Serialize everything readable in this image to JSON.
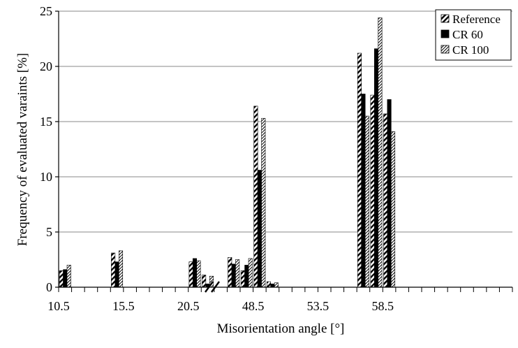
{
  "chart_data": {
    "type": "bar",
    "xlabel": "Misorientation angle [°]",
    "ylabel": "Frequency of evaluated varaints [%]",
    "ylim": [
      0,
      25
    ],
    "yticks": [
      0,
      5,
      10,
      15,
      20,
      25
    ],
    "xtick_labels": [
      "10.5",
      "15.5",
      "20.5",
      "48.5",
      "53.5",
      "58.5"
    ],
    "grid": "horizontal",
    "legend_position": "top-right",
    "axis_break": "between 20.5 and 48.5",
    "categories": [
      "10.5",
      "11.5",
      "14.5",
      "15.5",
      "20.5",
      "21.5",
      "22.5",
      "47.5",
      "48.5",
      "49.5",
      "50.5",
      "51.5",
      "52.5",
      "57.5",
      "58.5",
      "59.5",
      "60.5"
    ],
    "series": [
      {
        "name": "Reference",
        "pattern": "hatch-bold",
        "values": [
          1.5,
          0,
          3.1,
          0,
          2.3,
          1.1,
          0,
          2.7,
          1.5,
          16.4,
          0.5,
          0,
          0,
          21.2,
          17.4,
          15.7,
          0
        ]
      },
      {
        "name": "CR 60",
        "pattern": "solid-black",
        "values": [
          1.6,
          0,
          2.3,
          0,
          2.6,
          0.3,
          0,
          2.1,
          2.0,
          10.6,
          0.3,
          0,
          0,
          17.5,
          21.6,
          17.0,
          0
        ]
      },
      {
        "name": "CR 100",
        "pattern": "hatch-fine",
        "values": [
          2.0,
          0,
          3.3,
          0,
          2.4,
          1.0,
          0,
          2.5,
          2.6,
          15.3,
          0.4,
          0,
          0,
          15.5,
          24.4,
          14.1,
          0
        ]
      }
    ]
  }
}
